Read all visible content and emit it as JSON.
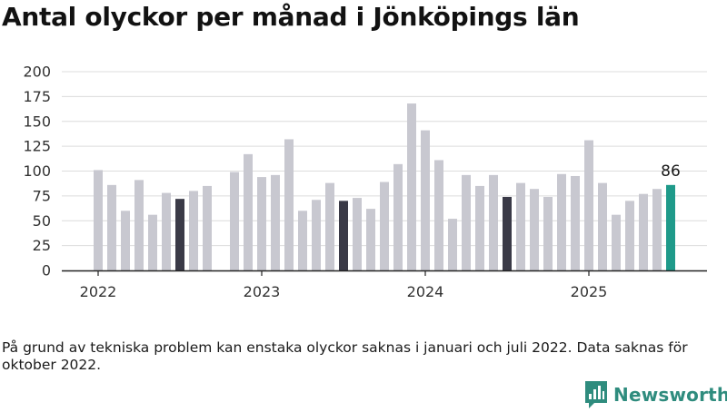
{
  "title": "Antal olyckor per månad i Jönköpings län",
  "note": "På grund av tekniska problem kan enstaka olyckor saknas i januari och juli 2022. Data saknas för oktober 2022.",
  "brand": {
    "name": "Newsworthy",
    "icon": "newsworthy-logo-icon"
  },
  "colors": {
    "bar": "#c8c8d0",
    "july": "#3a3a47",
    "latest": "#1f9a8a",
    "grid": "#dcdcdc",
    "axis": "#222222"
  },
  "chart_data": {
    "type": "bar",
    "title": "Antal olyckor per månad i Jönköpings län",
    "xlabel": "",
    "ylabel": "",
    "ylim": [
      0,
      200
    ],
    "yticks": [
      "0",
      "25",
      "50",
      "75",
      "100",
      "125",
      "150",
      "175",
      "200"
    ],
    "xticks": [
      "2022",
      "2023",
      "2024",
      "2025"
    ],
    "grid": true,
    "series": [
      {
        "values": [
          101,
          86,
          60,
          91,
          56,
          78,
          72,
          80,
          85,
          null,
          99,
          117,
          94,
          96,
          132,
          60,
          71,
          88,
          70,
          73,
          62,
          89,
          107,
          168,
          141,
          111,
          52,
          96,
          85,
          96,
          74,
          88,
          82,
          74,
          97,
          95,
          131,
          88,
          56,
          70,
          77,
          82,
          86
        ]
      }
    ],
    "start_month": "2022-01",
    "highlight_last_label": "86"
  }
}
